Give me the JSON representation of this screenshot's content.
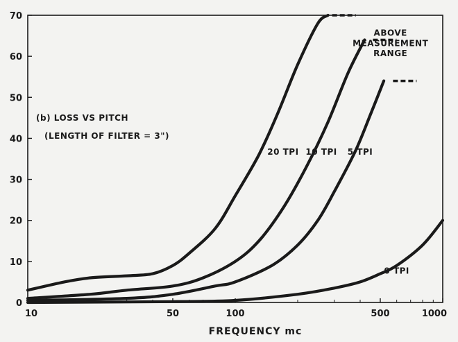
{
  "chart_data": {
    "type": "line",
    "title": "(b) LOSS VS PITCH",
    "subtitle": "(LENGTH OF FILTER = 3\")",
    "xlabel": "FREQUENCY mc",
    "ylabel": "",
    "xscale": "log",
    "xlim": [
      10,
      1000
    ],
    "ylim": [
      0,
      70
    ],
    "grid": false,
    "x_ticks": [
      10,
      50,
      100,
      500,
      1000
    ],
    "x_tick_labels": [
      "10",
      "50",
      "100",
      "500",
      "1000"
    ],
    "y_ticks": [
      0,
      10,
      20,
      30,
      40,
      50,
      60,
      70
    ],
    "y_tick_labels": [
      "0",
      "10",
      "20",
      "30",
      "40",
      "50",
      "60",
      "70"
    ],
    "series": [
      {
        "name": "20 TPI",
        "color": "#1a1a1a",
        "x": [
          10,
          15,
          20,
          30,
          40,
          50,
          60,
          80,
          100,
          130,
          160,
          200,
          250,
          280
        ],
        "y": [
          3,
          5,
          6,
          6.5,
          7,
          9,
          12,
          18,
          26,
          36,
          46,
          58,
          68,
          70
        ],
        "beyond_range_at": [
          280,
          70
        ]
      },
      {
        "name": "10 TPI",
        "color": "#1a1a1a",
        "x": [
          10,
          20,
          30,
          50,
          70,
          100,
          130,
          170,
          220,
          280,
          350,
          420
        ],
        "y": [
          1,
          2,
          3,
          4,
          6,
          10,
          15,
          23,
          33,
          44,
          56,
          64
        ],
        "beyond_range_at": [
          440,
          64
        ]
      },
      {
        "name": "5 TPI",
        "color": "#1a1a1a",
        "x": [
          10,
          30,
          50,
          80,
          100,
          150,
          200,
          250,
          300,
          380,
          450,
          520
        ],
        "y": [
          0.5,
          1,
          2,
          4,
          5,
          9,
          14,
          20,
          27,
          37,
          46,
          54
        ],
        "beyond_range_at": [
          550,
          54
        ]
      },
      {
        "name": "0 TPI",
        "color": "#1a1a1a",
        "x": [
          10,
          50,
          100,
          200,
          300,
          400,
          500,
          600,
          800,
          1000
        ],
        "y": [
          0,
          0.2,
          0.5,
          2,
          3.5,
          5,
          7,
          9,
          14,
          20
        ],
        "beyond_range_at": null
      }
    ],
    "annotations": [
      {
        "text": "20 TPI",
        "x": 170,
        "y": 36
      },
      {
        "text": "10 TPI",
        "x": 260,
        "y": 36
      },
      {
        "text": "5 TPI",
        "x": 400,
        "y": 36
      },
      {
        "text": "0 TPI",
        "x": 600,
        "y": 7
      },
      {
        "text": "ABOVE",
        "x": 560,
        "y": 65
      },
      {
        "text": "MEASUREMENT",
        "x": 560,
        "y": 62.5
      },
      {
        "text": "RANGE",
        "x": 560,
        "y": 60
      }
    ]
  }
}
